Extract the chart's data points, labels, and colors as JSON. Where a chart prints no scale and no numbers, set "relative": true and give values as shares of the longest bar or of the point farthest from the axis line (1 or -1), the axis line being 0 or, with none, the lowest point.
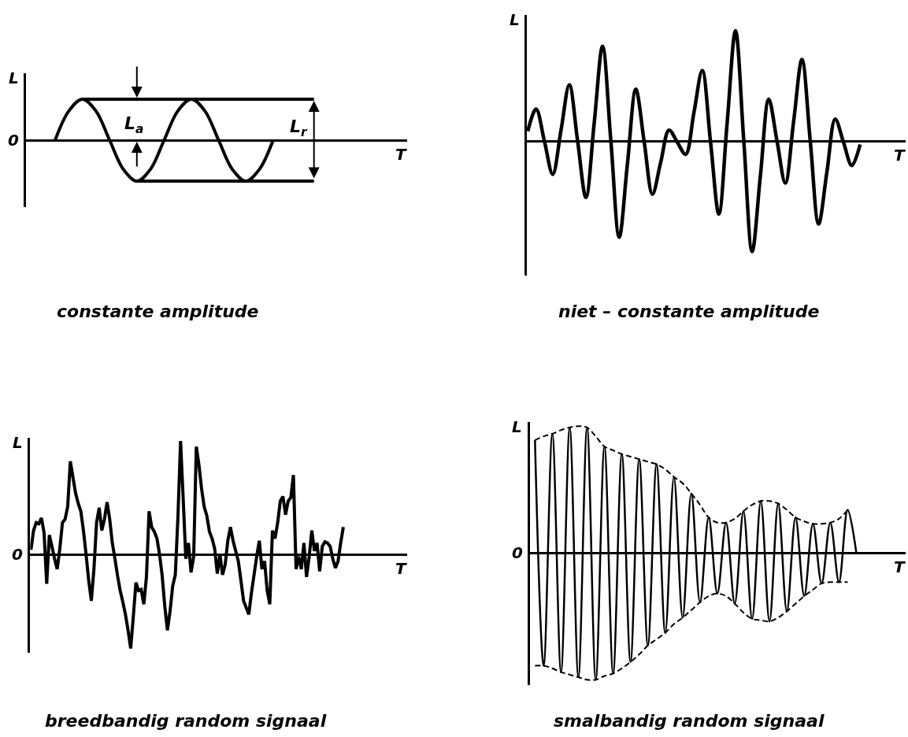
{
  "chart_data": [
    {
      "type": "line",
      "relative": true,
      "title": "constante amplitude",
      "xlabel": "T",
      "ylabel": "L",
      "line_style": "solid",
      "annotations": [
        "0",
        "L$_{a}$",
        "L$_{r}$"
      ],
      "categories": [
        null,
        null,
        null,
        null,
        null,
        null,
        null,
        null,
        null,
        null,
        null,
        null,
        null,
        null,
        null,
        null,
        null,
        null,
        null,
        null,
        null,
        null
      ],
      "series": [
        {
          "color": "#000000",
          "values": [
            null,
            null,
            0,
            0.71,
            1,
            0.71,
            0,
            -0.71,
            -1,
            -0.71,
            0,
            0.71,
            1,
            0.71,
            0,
            -0.71,
            -1,
            -0.71,
            0,
            null,
            null,
            null
          ]
        },
        {
          "color": "#000000",
          "values": [
            null,
            null,
            null,
            null,
            1,
            1,
            1,
            1,
            1,
            1,
            1,
            1,
            1,
            1,
            1,
            1,
            1,
            1,
            1,
            1,
            1,
            1
          ]
        },
        {
          "color": "#000000",
          "values": [
            null,
            null,
            null,
            null,
            null,
            null,
            null,
            null,
            -1,
            -1,
            -1,
            -1,
            -1,
            -1,
            -1,
            -1,
            -1,
            -1,
            -1,
            -1,
            -1,
            -1
          ]
        }
      ]
    },
    {
      "type": "line",
      "relative": true,
      "title": "niet – constante amplitude",
      "xlabel": "T",
      "ylabel": "L",
      "line_style": "solid",
      "categories": [
        null,
        null,
        null,
        null,
        null,
        null,
        null,
        null,
        null,
        null,
        null,
        null,
        null,
        null,
        null,
        null,
        null,
        null,
        null,
        null,
        null,
        null,
        null,
        null,
        null,
        null,
        null,
        null,
        null,
        null,
        null,
        null,
        null,
        null,
        null,
        null,
        null,
        null,
        null,
        null,
        null
      ],
      "series": [
        {
          "color": "#000000",
          "values": [
            0.09,
            0.29,
            0.0,
            -0.3,
            0.1,
            0.51,
            0.0,
            -0.51,
            0.17,
            0.86,
            0.0,
            -0.87,
            -0.2,
            0.47,
            0.0,
            -0.48,
            -0.19,
            0.1,
            -0.01,
            -0.12,
            0.26,
            0.64,
            -0.01,
            -0.66,
            0.17,
            1.0,
            0.0,
            -1.0,
            -0.31,
            0.38,
            0.0,
            -0.38,
            0.18,
            0.74,
            0.0,
            -0.75,
            -0.28,
            0.2,
            -0.01,
            -0.22,
            -0.03
          ]
        }
      ]
    },
    {
      "type": "line",
      "relative": true,
      "title": "breedbandig random signaal",
      "xlabel": "T",
      "ylabel": "L",
      "line_style": "solid",
      "annotations": [
        "0"
      ],
      "categories": [
        null,
        null,
        null,
        null,
        null,
        null,
        null,
        null,
        null,
        null,
        null,
        null,
        null,
        null,
        null,
        null,
        null,
        null,
        null,
        null,
        null,
        null,
        null,
        null,
        null,
        null,
        null,
        null,
        null,
        null,
        null,
        null,
        null,
        null,
        null,
        null,
        null,
        null,
        null,
        null,
        null,
        null,
        null,
        null,
        null,
        null,
        null,
        null,
        null,
        null,
        null,
        null,
        null,
        null,
        null,
        null,
        null,
        null,
        null,
        null,
        null,
        null,
        null,
        null,
        null,
        null,
        null,
        null,
        null,
        null,
        null,
        null,
        null,
        null,
        null,
        null,
        null,
        null,
        null,
        null,
        null,
        null,
        null,
        null,
        null,
        null,
        null,
        null,
        null,
        null,
        null,
        null,
        null,
        null,
        null,
        null,
        null,
        null,
        null,
        null,
        null,
        null,
        null,
        null,
        null,
        null,
        null,
        null,
        null,
        null,
        null,
        null,
        null,
        null,
        null,
        null,
        null,
        null,
        null,
        null
      ],
      "series": [
        {
          "color": "#000000",
          "values": [
            0.04,
            0.21,
            0.28,
            0.27,
            0.32,
            0.19,
            -0.26,
            0.17,
            0.07,
            -0.04,
            -0.13,
            0.05,
            0.28,
            0.31,
            0.42,
            0.82,
            0.68,
            0.54,
            0.45,
            0.38,
            0.21,
            0.0,
            -0.23,
            -0.41,
            -0.13,
            0.28,
            0.41,
            0.21,
            0.31,
            0.46,
            0.31,
            0.1,
            -0.04,
            -0.19,
            -0.32,
            -0.42,
            -0.53,
            -0.67,
            -0.83,
            -0.55,
            -0.25,
            -0.32,
            -0.31,
            -0.44,
            -0.2,
            0.38,
            0.24,
            0.2,
            0.14,
            0.0,
            -0.19,
            -0.46,
            -0.67,
            -0.5,
            -0.28,
            -0.18,
            0.33,
            1.0,
            0.49,
            -0.04,
            0.1,
            -0.16,
            -0.02,
            0.95,
            0.79,
            0.58,
            0.42,
            0.34,
            0.2,
            0.14,
            0.05,
            -0.17,
            0.0,
            -0.18,
            -0.09,
            0.12,
            0.24,
            0.12,
            0.03,
            -0.06,
            -0.23,
            -0.41,
            -0.47,
            -0.53,
            -0.34,
            -0.18,
            -0.02,
            0.12,
            -0.13,
            -0.06,
            -0.32,
            -0.44,
            0.21,
            0.14,
            0.28,
            0.47,
            0.51,
            0.35,
            0.47,
            0.5,
            0.7,
            -0.13,
            -0.02,
            -0.13,
            0.1,
            -0.2,
            -0.02,
            0.21,
            0.03,
            0.1,
            -0.15,
            0.07,
            0.11,
            0.1,
            0.07,
            -0.04,
            -0.12,
            -0.06,
            0.1,
            0.24
          ]
        }
      ]
    },
    {
      "type": "line",
      "relative": true,
      "title": "smalbandig random signaal",
      "xlabel": "T",
      "ylabel": "L",
      "line_style": "solid",
      "annotations": [
        "0"
      ],
      "categories": [
        null,
        null,
        null,
        null,
        null,
        null,
        null,
        null,
        null,
        null,
        null,
        null,
        null,
        null,
        null,
        null,
        null,
        null,
        null,
        null,
        null,
        null,
        null,
        null,
        null,
        null,
        null,
        null,
        null,
        null,
        null,
        null,
        null,
        null,
        null,
        null,
        null,
        null
      ],
      "series": [
        {
          "color": "#000000",
          "values": [
            0.89,
            -0.89,
            0.94,
            -0.94,
            0.99,
            -0.98,
            0.99,
            -1.0,
            0.84,
            -0.95,
            0.78,
            -0.86,
            0.74,
            -0.73,
            0.7,
            -0.63,
            0.6,
            -0.51,
            0.47,
            -0.39,
            0.28,
            -0.32,
            0.24,
            -0.4,
            0.33,
            -0.52,
            0.41,
            -0.54,
            0.39,
            -0.46,
            0.28,
            -0.34,
            0.23,
            -0.24,
            0.24,
            -0.23,
            0.34,
            0.0
          ]
        },
        {
          "color": "#000000",
          "line_style": "dashed",
          "values": [
            0.89,
            0.92,
            0.94,
            0.97,
            0.99,
            1.0,
            0.99,
            0.92,
            0.84,
            0.81,
            0.78,
            0.76,
            0.74,
            0.72,
            0.7,
            0.66,
            0.6,
            0.55,
            0.47,
            0.38,
            0.28,
            0.24,
            0.24,
            0.27,
            0.33,
            0.38,
            0.41,
            0.41,
            0.39,
            0.34,
            0.28,
            0.25,
            0.23,
            0.23,
            0.24,
            0.27,
            0.34,
            null
          ]
        },
        {
          "color": "#000000",
          "line_style": "dashed",
          "values": [
            -0.89,
            -0.89,
            -0.91,
            -0.94,
            -0.96,
            -0.98,
            -1.0,
            -1.0,
            -0.97,
            -0.95,
            -0.91,
            -0.86,
            -0.8,
            -0.73,
            -0.68,
            -0.63,
            -0.56,
            -0.51,
            -0.45,
            -0.39,
            -0.34,
            -0.32,
            -0.34,
            -0.4,
            -0.47,
            -0.52,
            -0.53,
            -0.54,
            -0.51,
            -0.46,
            -0.4,
            -0.34,
            -0.29,
            -0.24,
            -0.23,
            -0.23,
            -0.23,
            null
          ]
        }
      ]
    }
  ]
}
